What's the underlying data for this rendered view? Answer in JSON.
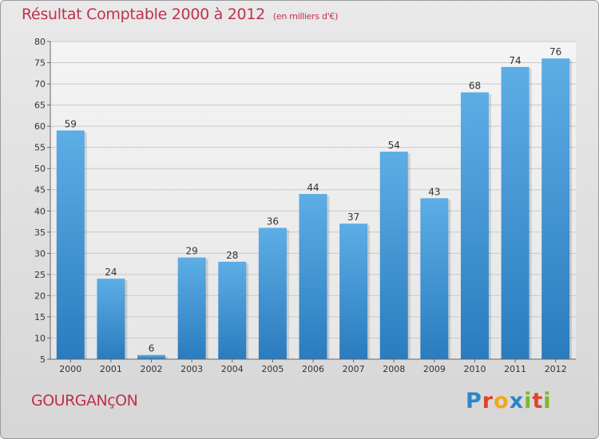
{
  "header": {
    "title": "Résultat Comptable 2000 à 2012",
    "subtitle": "(en milliers d'€)"
  },
  "footer": {
    "commune": "GOURGANçON",
    "logo": {
      "letters": [
        "P",
        "r",
        "o",
        "x",
        "i",
        "t",
        "i"
      ],
      "colors": [
        "#2b86c9",
        "#e2432b",
        "#f0a81c",
        "#2b86c9",
        "#7ab829",
        "#e2432b",
        "#7ab829"
      ]
    }
  },
  "colors": {
    "bar_top": "#5dade6",
    "bar_bottom": "#2a7cbe",
    "title": "#c0304d"
  },
  "chart_data": {
    "type": "bar",
    "title": "Résultat Comptable 2000 à 2012",
    "xlabel": "",
    "ylabel": "",
    "categories": [
      "2000",
      "2001",
      "2002",
      "2003",
      "2004",
      "2005",
      "2006",
      "2007",
      "2008",
      "2009",
      "2010",
      "2011",
      "2012"
    ],
    "values": [
      59,
      24,
      6,
      29,
      28,
      36,
      44,
      37,
      54,
      43,
      68,
      74,
      76
    ],
    "ylim": [
      5,
      80
    ],
    "yticks": [
      5,
      10,
      15,
      20,
      25,
      30,
      35,
      40,
      45,
      50,
      55,
      60,
      65,
      70,
      75,
      80
    ],
    "grid": true
  }
}
